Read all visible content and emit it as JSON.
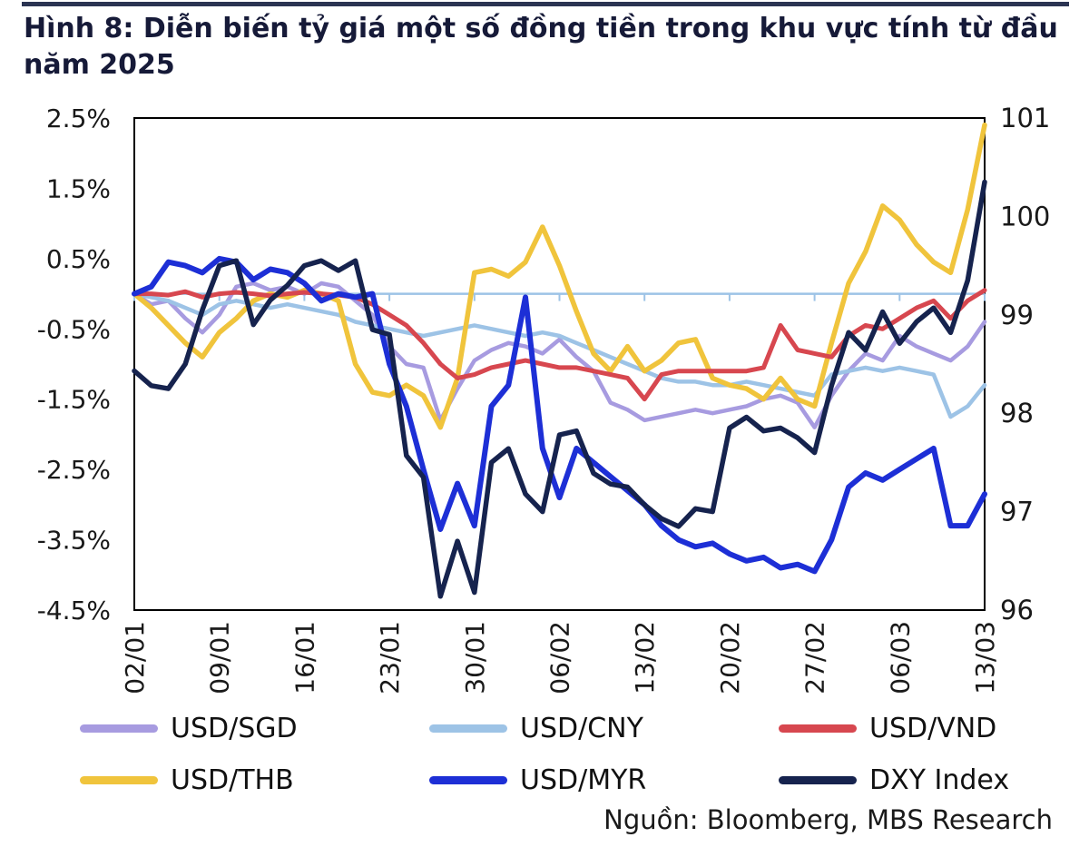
{
  "title": "Hình 8: Diễn biến tỷ giá một số đồng tiền trong khu vực tính từ đầu năm 2025",
  "source": "Nguồn: Bloomberg, MBS Research",
  "chart_data": {
    "type": "line",
    "title": "Hình 8: Diễn biến tỷ giá một số đồng tiền trong khu vực tính từ đầu năm 2025",
    "x_tick_labels": [
      "02/01",
      "09/01",
      "16/01",
      "23/01",
      "30/01",
      "06/02",
      "13/02",
      "20/02",
      "27/02",
      "06/03",
      "13/03"
    ],
    "x_tick_indices": [
      0,
      5,
      10,
      15,
      20,
      25,
      30,
      35,
      40,
      45,
      50
    ],
    "left_axis": {
      "ticks": [
        "2.5%",
        "1.5%",
        "0.5%",
        "-0.5%",
        "-1.5%",
        "-2.5%",
        "-3.5%",
        "-4.5%"
      ],
      "max": 2.5,
      "min": -4.5,
      "unit": "%"
    },
    "right_axis": {
      "ticks": [
        "101",
        "100",
        "99",
        "98",
        "97",
        "96"
      ],
      "max": 101,
      "min": 96
    },
    "zero_line_color": "#9dc3e6",
    "plot_border_color": "#000000",
    "grid": false,
    "legend_position": "bottom",
    "legend_order": [
      "USD/SGD",
      "USD/CNY",
      "USD/VND",
      "USD/THB",
      "USD/MYR",
      "DXY Index"
    ],
    "series": [
      {
        "name": "USD/SGD",
        "color": "#a79be0",
        "axis": "left",
        "values": [
          0.0,
          -0.15,
          -0.1,
          -0.35,
          -0.55,
          -0.3,
          0.1,
          0.15,
          0.05,
          0.1,
          0.0,
          0.15,
          0.1,
          -0.1,
          -0.3,
          -0.75,
          -1.0,
          -1.05,
          -1.8,
          -1.35,
          -0.95,
          -0.8,
          -0.7,
          -0.75,
          -0.85,
          -0.65,
          -0.9,
          -1.1,
          -1.55,
          -1.65,
          -1.8,
          -1.75,
          -1.7,
          -1.65,
          -1.7,
          -1.65,
          -1.6,
          -1.5,
          -1.45,
          -1.55,
          -1.9,
          -1.45,
          -1.1,
          -0.85,
          -0.95,
          -0.6,
          -0.75,
          -0.85,
          -0.95,
          -0.75,
          -0.4
        ]
      },
      {
        "name": "USD/CNY",
        "color": "#9dc3e6",
        "axis": "left",
        "values": [
          0.0,
          -0.05,
          -0.1,
          -0.2,
          -0.3,
          -0.15,
          -0.1,
          -0.15,
          -0.2,
          -0.15,
          -0.2,
          -0.25,
          -0.3,
          -0.4,
          -0.45,
          -0.5,
          -0.55,
          -0.6,
          -0.55,
          -0.5,
          -0.45,
          -0.5,
          -0.55,
          -0.6,
          -0.55,
          -0.6,
          -0.7,
          -0.8,
          -0.9,
          -1.0,
          -1.1,
          -1.2,
          -1.25,
          -1.25,
          -1.3,
          -1.3,
          -1.25,
          -1.3,
          -1.35,
          -1.4,
          -1.45,
          -1.15,
          -1.1,
          -1.05,
          -1.1,
          -1.05,
          -1.1,
          -1.15,
          -1.75,
          -1.6,
          -1.3
        ]
      },
      {
        "name": "USD/THB",
        "color": "#f0c43c",
        "axis": "left",
        "values": [
          0.0,
          -0.2,
          -0.45,
          -0.7,
          -0.9,
          -0.55,
          -0.35,
          -0.1,
          0.0,
          -0.05,
          0.05,
          0.0,
          -0.1,
          -1.0,
          -1.4,
          -1.45,
          -1.3,
          -1.45,
          -1.9,
          -1.2,
          0.3,
          0.35,
          0.25,
          0.45,
          0.95,
          0.4,
          -0.25,
          -0.85,
          -1.1,
          -0.75,
          -1.1,
          -0.95,
          -0.7,
          -0.65,
          -1.2,
          -1.3,
          -1.35,
          -1.5,
          -1.2,
          -1.5,
          -1.6,
          -0.7,
          0.15,
          0.6,
          1.25,
          1.05,
          0.7,
          0.45,
          0.3,
          1.2,
          2.4
        ]
      },
      {
        "name": "USD/VND",
        "color": "#d7474f",
        "axis": "left",
        "values": [
          0.0,
          0.0,
          -0.02,
          0.03,
          -0.05,
          0.0,
          0.02,
          0.0,
          -0.03,
          0.0,
          0.02,
          0.0,
          -0.02,
          -0.05,
          -0.15,
          -0.3,
          -0.45,
          -0.7,
          -1.0,
          -1.2,
          -1.15,
          -1.05,
          -1.0,
          -0.95,
          -1.0,
          -1.05,
          -1.05,
          -1.1,
          -1.15,
          -1.2,
          -1.5,
          -1.15,
          -1.1,
          -1.1,
          -1.1,
          -1.1,
          -1.1,
          -1.05,
          -0.45,
          -0.8,
          -0.85,
          -0.9,
          -0.6,
          -0.45,
          -0.5,
          -0.35,
          -0.2,
          -0.1,
          -0.35,
          -0.1,
          0.05
        ]
      },
      {
        "name": "USD/MYR",
        "color": "#1d2fd6",
        "axis": "left",
        "values": [
          0.0,
          0.1,
          0.45,
          0.4,
          0.3,
          0.5,
          0.45,
          0.2,
          0.35,
          0.3,
          0.15,
          -0.1,
          0.0,
          -0.05,
          0.0,
          -1.0,
          -1.6,
          -2.5,
          -3.35,
          -2.7,
          -3.3,
          -1.6,
          -1.3,
          -0.05,
          -2.2,
          -2.9,
          -2.2,
          -2.4,
          -2.6,
          -2.8,
          -3.0,
          -3.3,
          -3.5,
          -3.6,
          -3.55,
          -3.7,
          -3.8,
          -3.75,
          -3.9,
          -3.85,
          -3.95,
          -3.5,
          -2.75,
          -2.55,
          -2.65,
          -2.5,
          -2.35,
          -2.2,
          -3.3,
          -3.3,
          -2.85
        ]
      },
      {
        "name": "DXY Index",
        "color": "#16234e",
        "axis": "right",
        "values": [
          98.43,
          98.28,
          98.25,
          98.5,
          99.05,
          99.5,
          99.55,
          98.9,
          99.15,
          99.3,
          99.5,
          99.55,
          99.45,
          99.55,
          98.85,
          98.8,
          97.57,
          97.35,
          96.14,
          96.7,
          96.18,
          97.5,
          97.64,
          97.18,
          97.0,
          97.78,
          97.82,
          97.39,
          97.28,
          97.25,
          97.07,
          96.93,
          96.85,
          97.03,
          97.0,
          97.85,
          97.96,
          97.82,
          97.85,
          97.75,
          97.6,
          98.28,
          98.82,
          98.64,
          99.03,
          98.71,
          98.93,
          99.07,
          98.82,
          99.35,
          100.35
        ]
      }
    ]
  }
}
